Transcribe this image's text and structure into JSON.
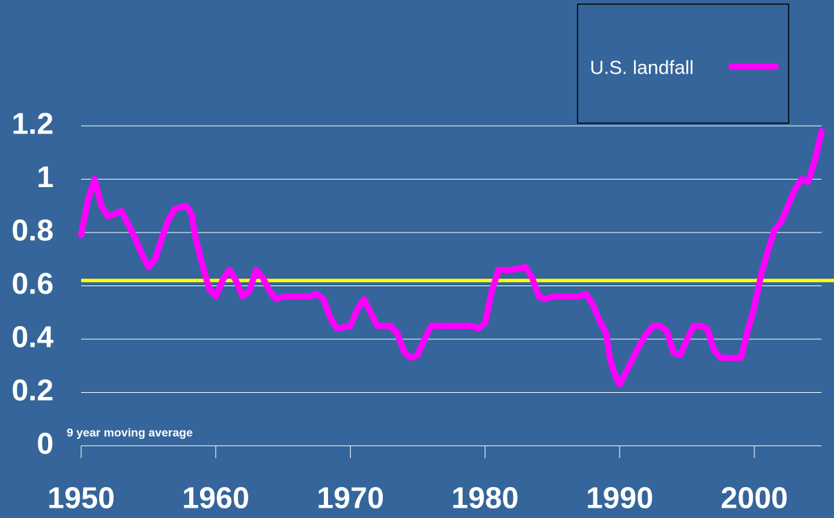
{
  "chart_data": {
    "type": "line",
    "annotation": "9 year moving average",
    "x": [
      1950,
      1950.5,
      1951,
      1951.5,
      1952,
      1953,
      1954,
      1954.5,
      1955,
      1955.5,
      1956,
      1956.5,
      1957,
      1957.8,
      1958.2,
      1958.5,
      1959,
      1959.5,
      1960,
      1960.5,
      1961,
      1961.5,
      1962,
      1962.5,
      1963,
      1963.5,
      1964,
      1964.5,
      1965,
      1967,
      1967.5,
      1968,
      1968.5,
      1969,
      1970,
      1970.5,
      1971,
      1971.5,
      1972,
      1973,
      1973.5,
      1974,
      1974.5,
      1975,
      1975.5,
      1976,
      1977,
      1979,
      1979.5,
      1980,
      1980.5,
      1981,
      1982,
      1983,
      1983.5,
      1984,
      1984.5,
      1985,
      1987,
      1987.5,
      1988,
      1988.5,
      1989,
      1989.3,
      1989.7,
      1990,
      1990.5,
      1991,
      1991.5,
      1992,
      1992.5,
      1993,
      1993.5,
      1994,
      1994.5,
      1995,
      1995.5,
      1996,
      1996.5,
      1997,
      1997.5,
      1998,
      1998.5,
      1999,
      1999.5,
      2000,
      2000.5,
      2001,
      2001.5,
      2002,
      2002.5,
      2003,
      2003.5,
      2004,
      2004.5,
      2005
    ],
    "series": [
      {
        "name": "U.S. landfall",
        "color": "#ff00ff",
        "values": [
          0.79,
          0.92,
          1.0,
          0.9,
          0.86,
          0.88,
          0.78,
          0.72,
          0.67,
          0.7,
          0.78,
          0.85,
          0.89,
          0.9,
          0.87,
          0.78,
          0.68,
          0.59,
          0.56,
          0.62,
          0.66,
          0.62,
          0.56,
          0.58,
          0.66,
          0.63,
          0.58,
          0.55,
          0.56,
          0.56,
          0.57,
          0.55,
          0.48,
          0.44,
          0.45,
          0.51,
          0.55,
          0.5,
          0.45,
          0.45,
          0.42,
          0.35,
          0.33,
          0.34,
          0.4,
          0.45,
          0.45,
          0.45,
          0.44,
          0.46,
          0.58,
          0.66,
          0.66,
          0.67,
          0.63,
          0.56,
          0.55,
          0.56,
          0.56,
          0.57,
          0.53,
          0.47,
          0.42,
          0.32,
          0.26,
          0.23,
          0.28,
          0.33,
          0.38,
          0.42,
          0.45,
          0.45,
          0.43,
          0.35,
          0.34,
          0.4,
          0.45,
          0.45,
          0.44,
          0.36,
          0.33,
          0.33,
          0.33,
          0.33,
          0.43,
          0.52,
          0.64,
          0.73,
          0.81,
          0.84,
          0.9,
          0.96,
          1.0,
          0.99,
          1.07,
          1.18
        ]
      }
    ],
    "reference_line": {
      "value": 0.62,
      "color": "#ffff00"
    },
    "xlim": [
      1950,
      2005
    ],
    "xticks": [
      1950,
      1960,
      1970,
      1980,
      1990,
      2000
    ],
    "ylim": [
      0,
      1.2
    ],
    "yticks": [
      0,
      0.2,
      0.4,
      0.6,
      0.8,
      1,
      1.2
    ],
    "grid": true,
    "legend": "top-right"
  }
}
